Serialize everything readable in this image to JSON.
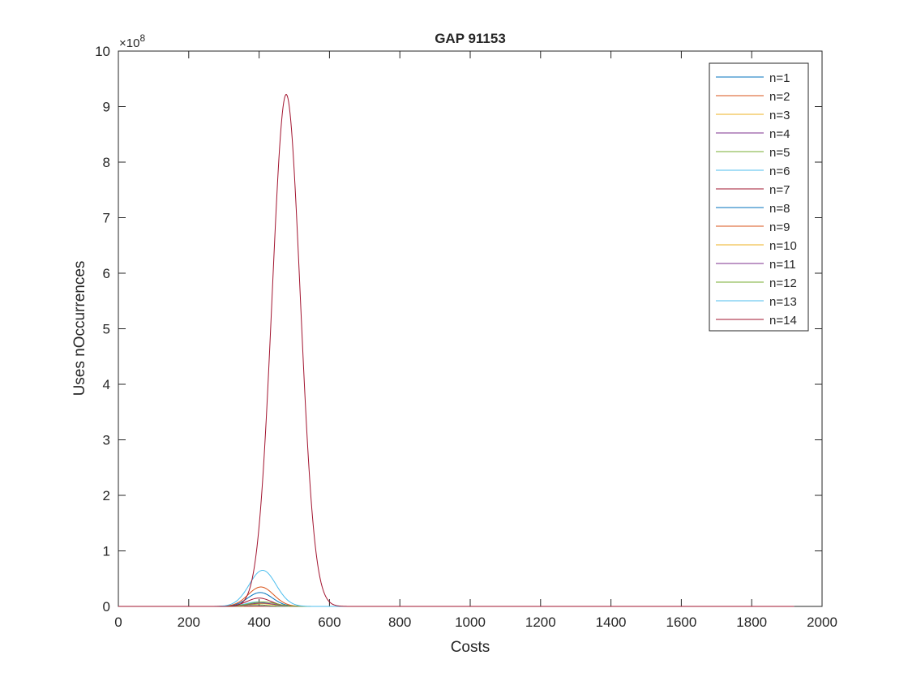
{
  "chart_data": {
    "type": "line",
    "title": "GAP 91153",
    "xlabel": "Costs",
    "ylabel": "Uses nOccurrences",
    "y_exponent_label": "×10",
    "y_exponent_power": "8",
    "xlim": [
      0,
      2000
    ],
    "ylim": [
      0,
      10
    ],
    "x_ticks": [
      0,
      200,
      400,
      600,
      800,
      1000,
      1200,
      1400,
      1600,
      1800,
      2000
    ],
    "x_tick_labels": [
      "0",
      "200",
      "400",
      "600",
      "800",
      "1000",
      "1200",
      "1400",
      "1600",
      "1800",
      "2000"
    ],
    "y_ticks": [
      0,
      1,
      2,
      3,
      4,
      5,
      6,
      7,
      8,
      9,
      10
    ],
    "y_tick_labels": [
      "0",
      "1",
      "2",
      "3",
      "4",
      "5",
      "6",
      "7",
      "8",
      "9",
      "10"
    ],
    "y_scale_factor": 100000000,
    "x_range_of_data": [
      0,
      1920
    ],
    "grid": false,
    "legend_position": "top-right",
    "series": [
      {
        "name": "n=1",
        "color": "#0072BD",
        "peak_x": 0,
        "peak_y": 0,
        "width": 40
      },
      {
        "name": "n=2",
        "color": "#D95319",
        "peak_x": 0,
        "peak_y": 0,
        "width": 40
      },
      {
        "name": "n=3",
        "color": "#EDB120",
        "peak_x": 370,
        "peak_y": 0.003,
        "width": 30
      },
      {
        "name": "n=4",
        "color": "#7E2F8E",
        "peak_x": 380,
        "peak_y": 0.01,
        "width": 30
      },
      {
        "name": "n=5",
        "color": "#77AC30",
        "peak_x": 390,
        "peak_y": 0.03,
        "width": 32
      },
      {
        "name": "n=6",
        "color": "#4DBEEE",
        "peak_x": 395,
        "peak_y": 0.08,
        "width": 33
      },
      {
        "name": "n=7",
        "color": "#A2142F",
        "peak_x": 400,
        "peak_y": 0.15,
        "width": 34
      },
      {
        "name": "n=8",
        "color": "#0072BD",
        "peak_x": 403,
        "peak_y": 0.25,
        "width": 35
      },
      {
        "name": "n=9",
        "color": "#D95319",
        "peak_x": 405,
        "peak_y": 0.35,
        "width": 36
      },
      {
        "name": "n=10",
        "color": "#EDB120",
        "peak_x": 405,
        "peak_y": 0.05,
        "width": 36
      },
      {
        "name": "n=11",
        "color": "#7E2F8E",
        "peak_x": 407,
        "peak_y": 0.06,
        "width": 37
      },
      {
        "name": "n=12",
        "color": "#77AC30",
        "peak_x": 410,
        "peak_y": 0.08,
        "width": 38
      },
      {
        "name": "n=13",
        "color": "#4DBEEE",
        "peak_x": 410,
        "peak_y": 0.65,
        "width": 38
      },
      {
        "name": "n=14",
        "color": "#A2142F",
        "peak_x": 477,
        "peak_y": 9.22,
        "width": 40
      }
    ]
  }
}
